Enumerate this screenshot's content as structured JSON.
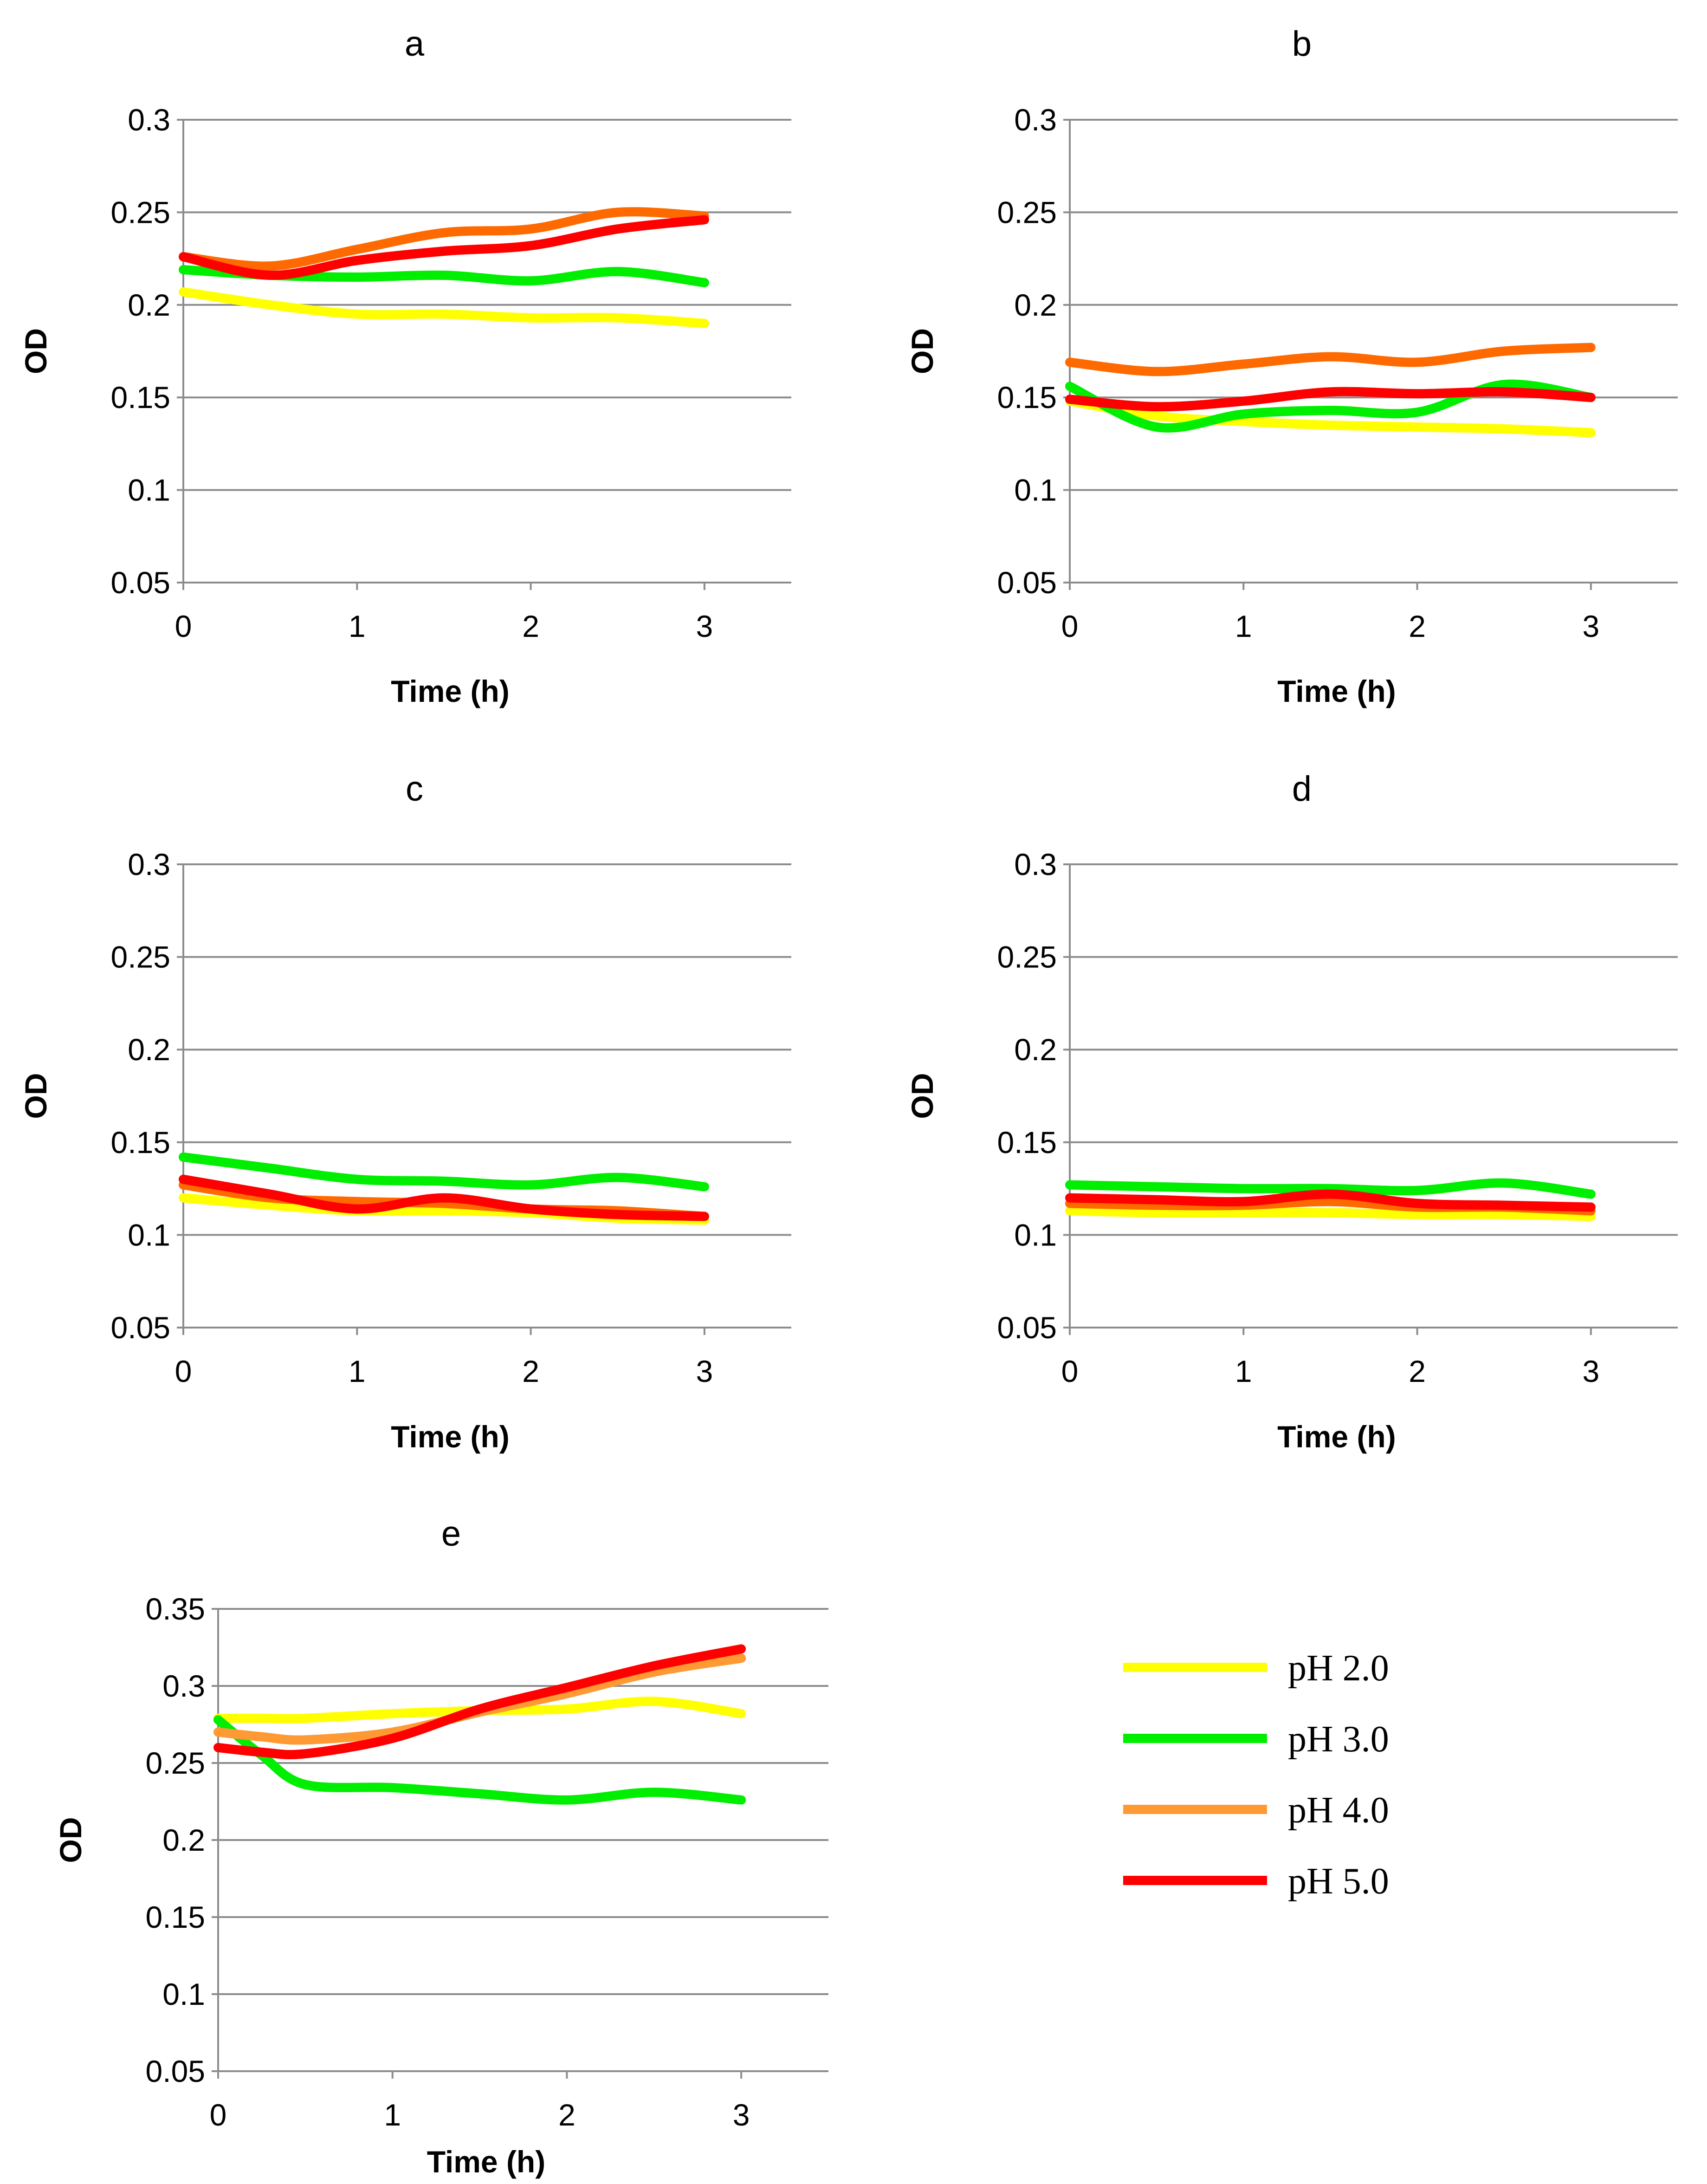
{
  "legend": [
    {
      "label": "pH 2.0",
      "color": "#ffff00"
    },
    {
      "label": "pH 3.0",
      "color": "#00ee00"
    },
    {
      "label": "pH 4.0",
      "color": "#ff9933"
    },
    {
      "label": "pH 5.0",
      "color": "#ff0000"
    }
  ],
  "chart_data": [
    {
      "type": "line",
      "title": "a",
      "xlabel": "Time (h)",
      "ylabel": "OD",
      "xlim": [
        0,
        3.5
      ],
      "ylim": [
        0.05,
        0.3
      ],
      "xticks": [
        "0",
        "1",
        "2",
        "3"
      ],
      "yticks": [
        "0.05",
        "0.1",
        "0.15",
        "0.2",
        "0.25",
        "0.3"
      ],
      "x": [
        0,
        0.5,
        1,
        1.5,
        2,
        2.5,
        3
      ],
      "series": [
        {
          "name": "pH 2.0",
          "color": "#ffff00",
          "values": [
            0.207,
            0.2,
            0.195,
            0.195,
            0.193,
            0.193,
            0.19
          ]
        },
        {
          "name": "pH 3.0",
          "color": "#00ee00",
          "values": [
            0.219,
            0.216,
            0.215,
            0.216,
            0.213,
            0.218,
            0.212
          ]
        },
        {
          "name": "pH 4.0",
          "color": "#ff6a00",
          "values": [
            0.226,
            0.221,
            0.23,
            0.239,
            0.241,
            0.25,
            0.248
          ]
        },
        {
          "name": "pH 5.0",
          "color": "#ff0000",
          "values": [
            0.226,
            0.216,
            0.224,
            0.229,
            0.232,
            0.241,
            0.246
          ]
        }
      ]
    },
    {
      "type": "line",
      "title": "b",
      "xlabel": "Time (h)",
      "ylabel": "OD",
      "xlim": [
        0,
        3.5
      ],
      "ylim": [
        0.05,
        0.3
      ],
      "xticks": [
        "0",
        "1",
        "2",
        "3"
      ],
      "yticks": [
        "0.05",
        "0.1",
        "0.15",
        "0.2",
        "0.25",
        "0.3"
      ],
      "x": [
        0,
        0.5,
        1,
        1.5,
        2,
        2.5,
        3
      ],
      "series": [
        {
          "name": "pH 2.0",
          "color": "#ffff00",
          "values": [
            0.148,
            0.14,
            0.137,
            0.135,
            0.134,
            0.133,
            0.131
          ]
        },
        {
          "name": "pH 3.0",
          "color": "#00ee00",
          "values": [
            0.156,
            0.134,
            0.141,
            0.143,
            0.142,
            0.157,
            0.15
          ]
        },
        {
          "name": "pH 4.0",
          "color": "#ff6a00",
          "values": [
            0.169,
            0.164,
            0.168,
            0.172,
            0.169,
            0.175,
            0.177
          ]
        },
        {
          "name": "pH 5.0",
          "color": "#ff0000",
          "values": [
            0.149,
            0.145,
            0.148,
            0.153,
            0.152,
            0.153,
            0.15
          ]
        }
      ]
    },
    {
      "type": "line",
      "title": "c",
      "xlabel": "Time (h)",
      "ylabel": "OD",
      "xlim": [
        0,
        3.5
      ],
      "ylim": [
        0.05,
        0.3
      ],
      "xticks": [
        "0",
        "1",
        "2",
        "3"
      ],
      "yticks": [
        "0.05",
        "0.1",
        "0.15",
        "0.2",
        "0.25",
        "0.3"
      ],
      "x": [
        0,
        0.5,
        1,
        1.5,
        2,
        2.5,
        3
      ],
      "series": [
        {
          "name": "pH 2.0",
          "color": "#ffff00",
          "values": [
            0.12,
            0.116,
            0.113,
            0.113,
            0.112,
            0.109,
            0.108
          ]
        },
        {
          "name": "pH 3.0",
          "color": "#00ee00",
          "values": [
            0.142,
            0.136,
            0.13,
            0.129,
            0.127,
            0.131,
            0.126
          ]
        },
        {
          "name": "pH 4.0",
          "color": "#ff6a00",
          "values": [
            0.127,
            0.12,
            0.118,
            0.117,
            0.114,
            0.113,
            0.11
          ]
        },
        {
          "name": "pH 5.0",
          "color": "#ff0000",
          "values": [
            0.13,
            0.122,
            0.114,
            0.12,
            0.114,
            0.111,
            0.11
          ]
        }
      ]
    },
    {
      "type": "line",
      "title": "d",
      "xlabel": "Time (h)",
      "ylabel": "OD",
      "xlim": [
        0,
        3.5
      ],
      "ylim": [
        0.05,
        0.3
      ],
      "xticks": [
        "0",
        "1",
        "2",
        "3"
      ],
      "yticks": [
        "0.05",
        "0.1",
        "0.15",
        "0.2",
        "0.25",
        "0.3"
      ],
      "x": [
        0,
        0.5,
        1,
        1.5,
        2,
        2.5,
        3
      ],
      "series": [
        {
          "name": "pH 2.0",
          "color": "#ffff00",
          "values": [
            0.113,
            0.112,
            0.112,
            0.112,
            0.111,
            0.111,
            0.11
          ]
        },
        {
          "name": "pH 3.0",
          "color": "#00ee00",
          "values": [
            0.127,
            0.126,
            0.125,
            0.125,
            0.124,
            0.128,
            0.122
          ]
        },
        {
          "name": "pH 4.0",
          "color": "#ff6a00",
          "values": [
            0.117,
            0.116,
            0.116,
            0.118,
            0.115,
            0.115,
            0.113
          ]
        },
        {
          "name": "pH 5.0",
          "color": "#ff0000",
          "values": [
            0.12,
            0.119,
            0.118,
            0.122,
            0.117,
            0.116,
            0.115
          ]
        }
      ]
    },
    {
      "type": "line",
      "title": "e",
      "xlabel": "Time (h)",
      "ylabel": "OD",
      "xlim": [
        0,
        3.5
      ],
      "ylim": [
        0.05,
        0.35
      ],
      "xticks": [
        "0",
        "1",
        "2",
        "3"
      ],
      "yticks": [
        "0.05",
        "0.1",
        "0.15",
        "0.2",
        "0.25",
        "0.3",
        "0.35"
      ],
      "x": [
        0,
        0.25,
        0.5,
        1,
        1.5,
        2,
        2.5,
        3
      ],
      "series": [
        {
          "name": "pH 2.0",
          "color": "#ffff00",
          "values": [
            0.279,
            0.279,
            0.279,
            0.282,
            0.284,
            0.285,
            0.29,
            0.282
          ]
        },
        {
          "name": "pH 3.0",
          "color": "#00ee00",
          "values": [
            0.278,
            0.255,
            0.236,
            0.234,
            0.23,
            0.226,
            0.231,
            0.226
          ]
        },
        {
          "name": "pH 4.0",
          "color": "#ff9933",
          "values": [
            0.27,
            0.267,
            0.265,
            0.27,
            0.283,
            0.295,
            0.309,
            0.318
          ]
        },
        {
          "name": "pH 5.0",
          "color": "#ff0000",
          "values": [
            0.26,
            0.257,
            0.256,
            0.266,
            0.285,
            0.299,
            0.313,
            0.324
          ]
        }
      ]
    }
  ]
}
